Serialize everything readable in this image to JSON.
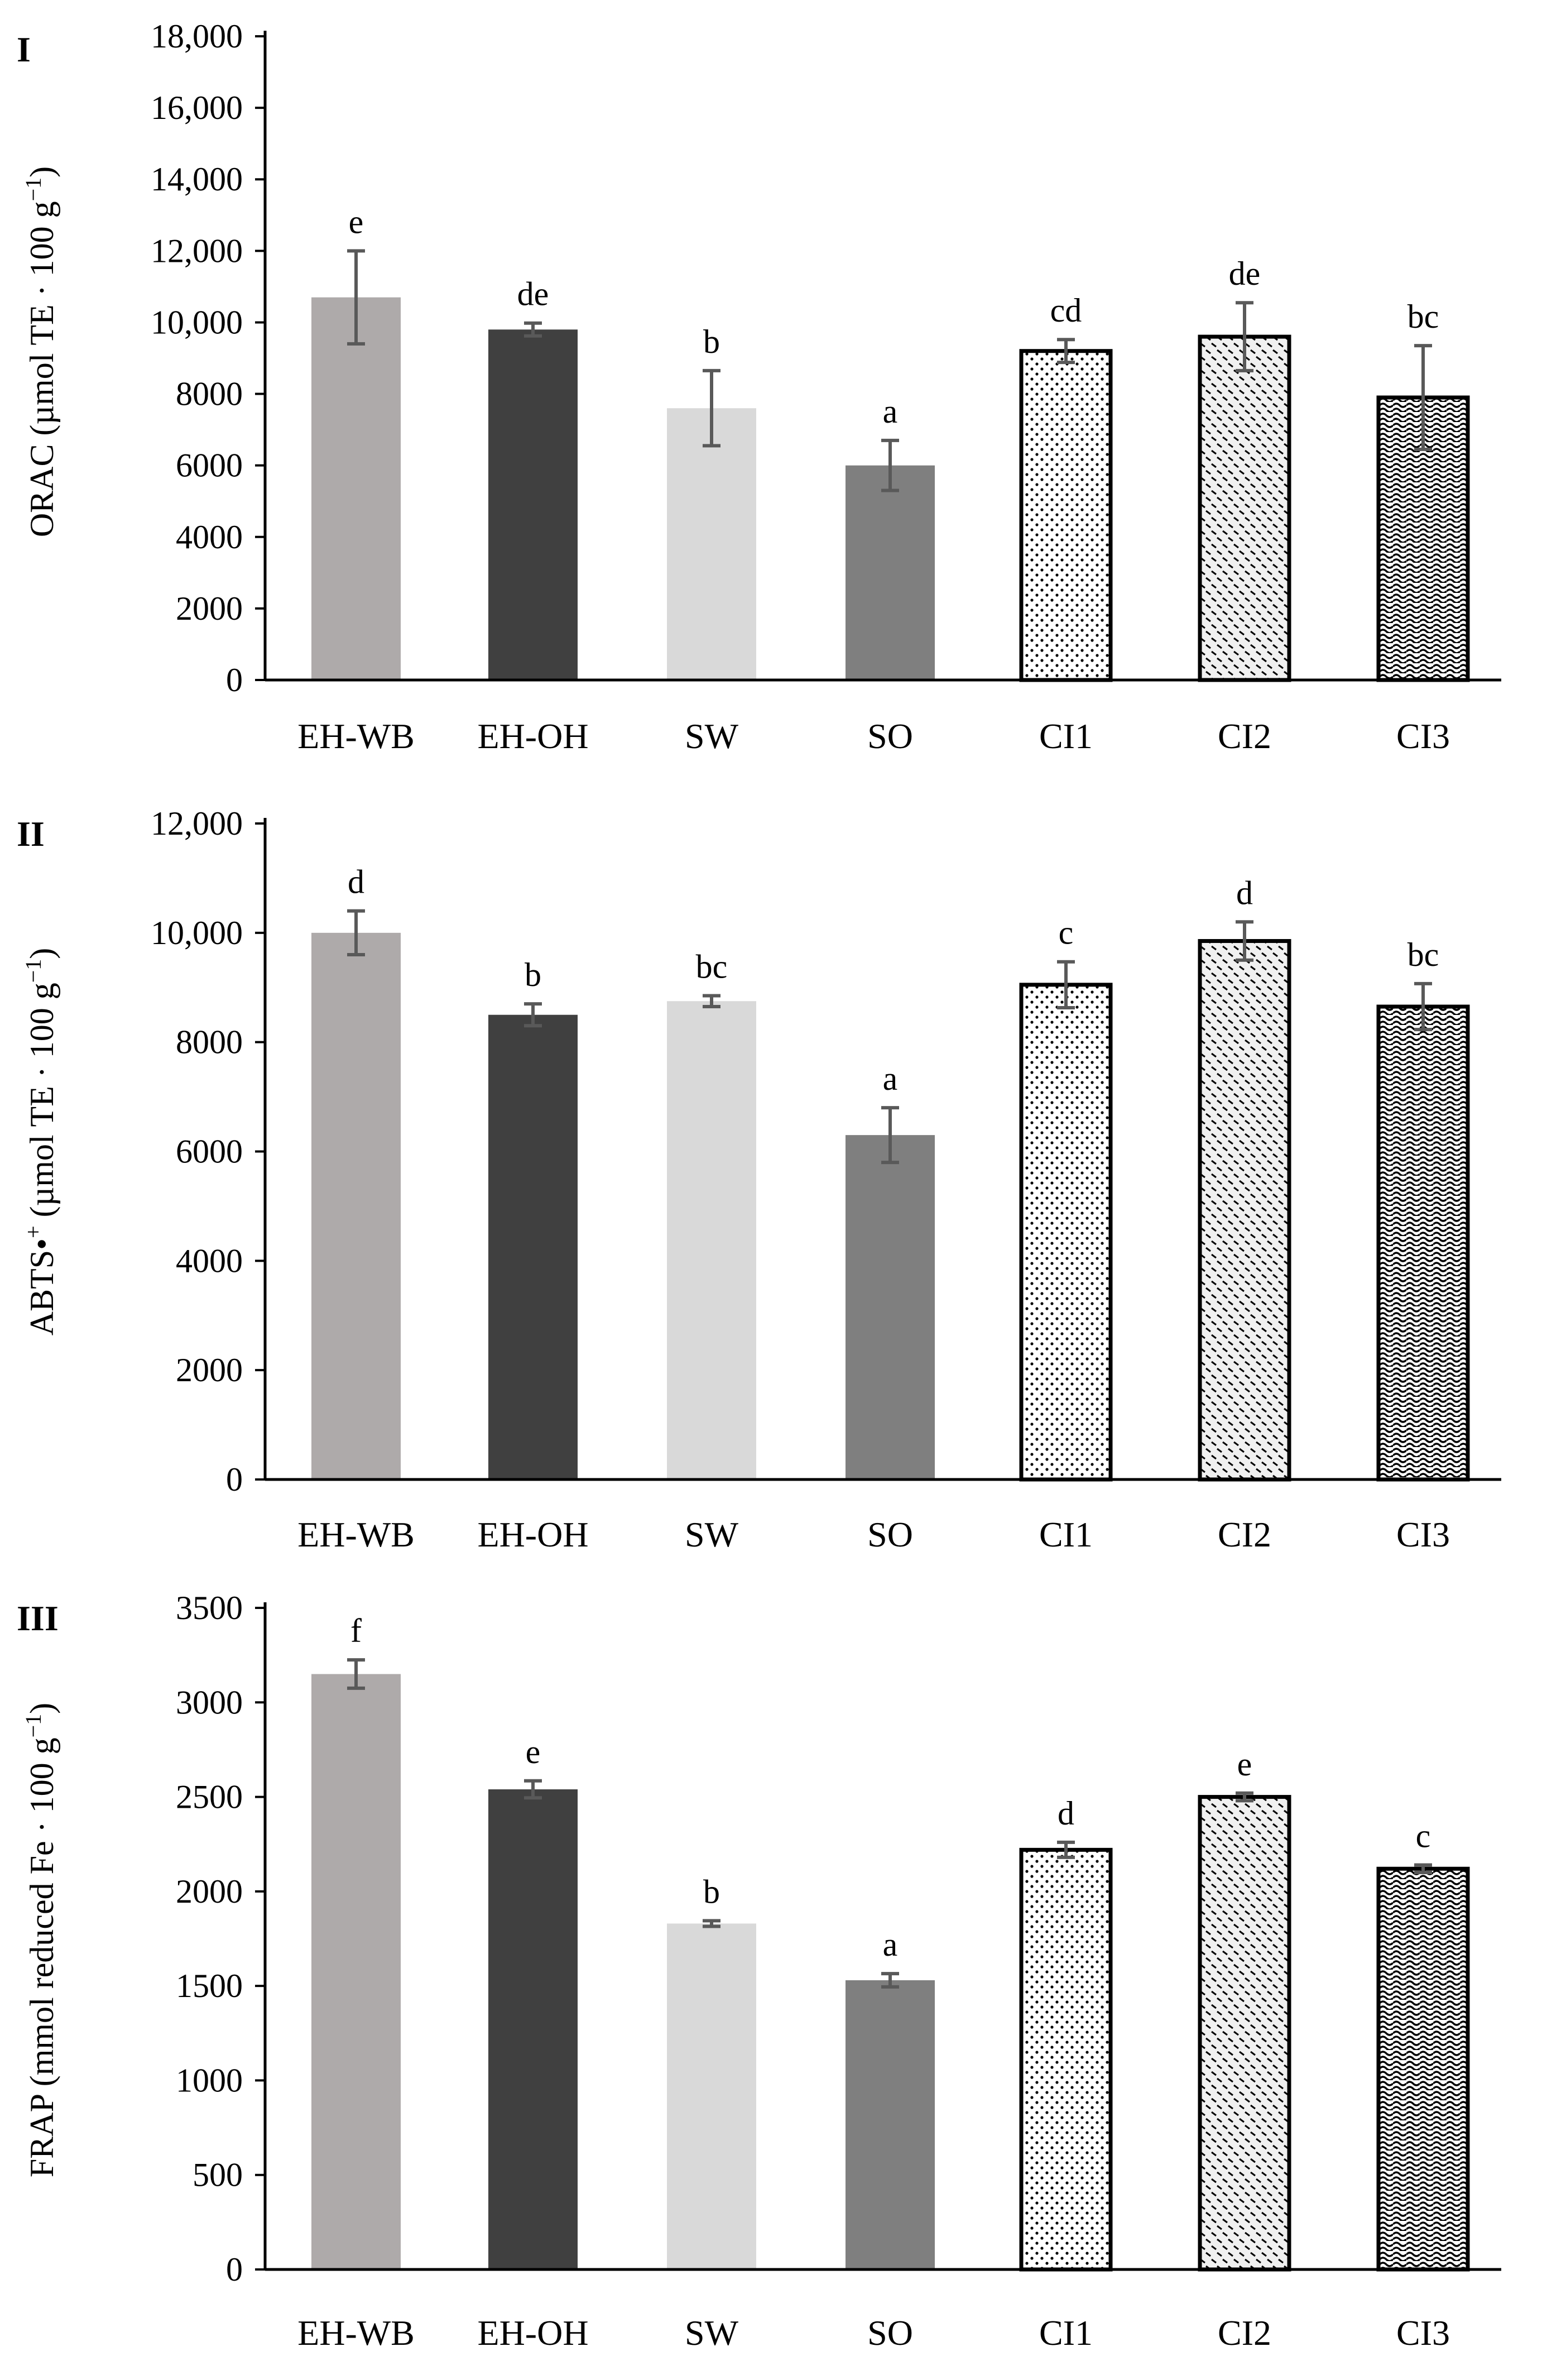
{
  "colors": {
    "eh_wb": "#aeaaaa",
    "eh_oh": "#404040",
    "sw": "#d9d9d9",
    "so": "#7f7f7f",
    "pattern_bg": "#ffffff",
    "pattern_fg": "#000000",
    "error_bar": "#595959",
    "axis": "#000000"
  },
  "chart_data": [
    {
      "type": "bar",
      "panel_label": "I",
      "ylabel_main": "ORAC (µmol TE · 100 g",
      "ylabel_sup": "−1",
      "ylabel_end": ")",
      "ylim": [
        0,
        18000
      ],
      "yticks": [
        0,
        2000,
        4000,
        6000,
        8000,
        10000,
        12000,
        14000,
        16000,
        18000
      ],
      "ytick_labels": [
        "0",
        "2000",
        "4000",
        "6000",
        "8000",
        "10,000",
        "12,000",
        "14,000",
        "16,000",
        "18,000"
      ],
      "categories": [
        "EH-WB",
        "EH-OH",
        "SW",
        "SO",
        "CI1",
        "CI2",
        "CI3"
      ],
      "values": [
        10700,
        9800,
        7600,
        6000,
        9200,
        9600,
        7900
      ],
      "errors": [
        1300,
        180,
        1050,
        700,
        320,
        950,
        1450
      ],
      "letters": [
        "e",
        "de",
        "b",
        "a",
        "cd",
        "de",
        "bc"
      ]
    },
    {
      "type": "bar",
      "panel_label": "II",
      "ylabel_main": "ABTS•",
      "ylabel_sup": "+",
      "ylabel_rest": " (µmol TE · 100 g",
      "ylabel_sup2": "−1",
      "ylabel_end": ")",
      "ylim": [
        0,
        12000
      ],
      "yticks": [
        0,
        2000,
        4000,
        6000,
        8000,
        10000,
        12000
      ],
      "ytick_labels": [
        "0",
        "2000",
        "4000",
        "6000",
        "8000",
        "10,000",
        "12,000"
      ],
      "categories": [
        "EH-WB",
        "EH-OH",
        "SW",
        "SO",
        "CI1",
        "CI2",
        "CI3"
      ],
      "values": [
        10000,
        8500,
        8750,
        6300,
        9050,
        9850,
        8650
      ],
      "errors": [
        400,
        200,
        100,
        500,
        420,
        350,
        420
      ],
      "letters": [
        "d",
        "b",
        "bc",
        "a",
        "c",
        "d",
        "bc"
      ]
    },
    {
      "type": "bar",
      "panel_label": "III",
      "ylabel_main": "FRAP (mmol reduced Fe · 100 g",
      "ylabel_sup": "−1",
      "ylabel_end": ")",
      "ylim": [
        0,
        3500
      ],
      "yticks": [
        0,
        500,
        1000,
        1500,
        2000,
        2500,
        3000,
        3500
      ],
      "ytick_labels": [
        "0",
        "500",
        "1000",
        "1500",
        "2000",
        "2500",
        "3000",
        "3500"
      ],
      "categories": [
        "EH-WB",
        "EH-OH",
        "SW",
        "SO",
        "CI1",
        "CI2",
        "CI3"
      ],
      "values": [
        3150,
        2540,
        1830,
        1530,
        2220,
        2500,
        2120
      ],
      "errors": [
        75,
        45,
        15,
        35,
        40,
        20,
        20
      ],
      "letters": [
        "f",
        "e",
        "b",
        "a",
        "d",
        "e",
        "c"
      ]
    }
  ]
}
